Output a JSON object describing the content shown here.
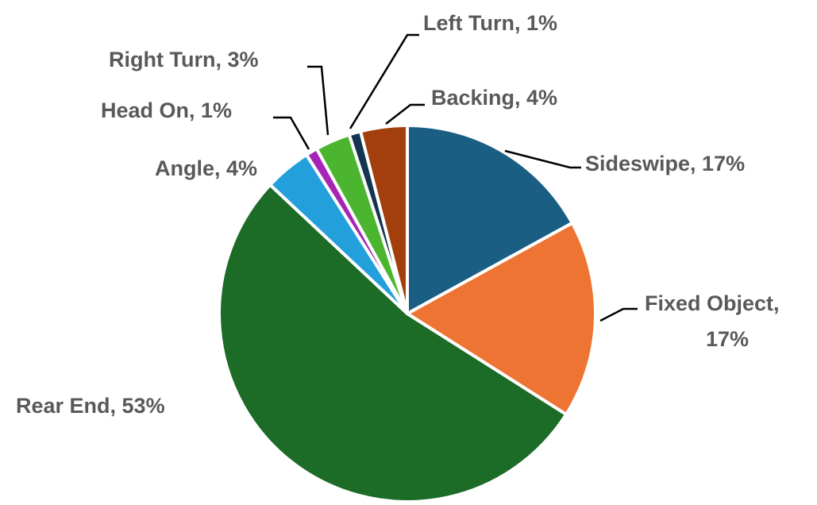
{
  "chart_data": {
    "type": "pie",
    "title": "",
    "slices": [
      {
        "name": "Sideswipe",
        "label": "Sideswipe, 17%",
        "value": 17,
        "color": "#1b5e83"
      },
      {
        "name": "Fixed Object",
        "label": "Fixed Object,",
        "label2": "17%",
        "value": 17,
        "color": "#ed7432"
      },
      {
        "name": "Rear End",
        "label": "Rear End, 53%",
        "value": 53,
        "color": "#1c6b27"
      },
      {
        "name": "Angle",
        "label": "Angle, 4%",
        "value": 4,
        "color": "#23a0dc"
      },
      {
        "name": "Head On",
        "label": "Head On, 1%",
        "value": 1,
        "color": "#a625b5"
      },
      {
        "name": "Right Turn",
        "label": "Right Turn, 3%",
        "value": 3,
        "color": "#4cb52f"
      },
      {
        "name": "Left Turn",
        "label": "Left Turn, 1%",
        "value": 1,
        "color": "#14354f"
      },
      {
        "name": "Backing",
        "label": "Backing, 4%",
        "value": 4,
        "color": "#a33f0d"
      }
    ]
  }
}
